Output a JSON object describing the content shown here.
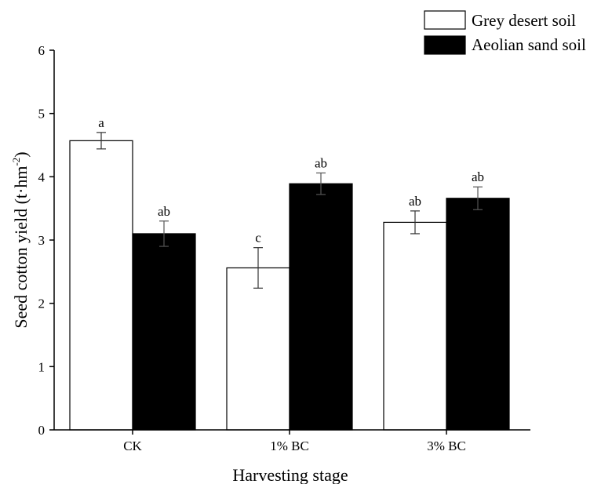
{
  "chart_data": {
    "type": "bar",
    "xlabel": "Harvesting stage",
    "ylabel_main": "Seed cotton yield (t·hm",
    "ylabel_sup": "-2",
    "ylabel_tail": ")",
    "ylim": [
      0,
      6
    ],
    "yticks": [
      "0",
      "1",
      "2",
      "3",
      "4",
      "5",
      "6"
    ],
    "categories": [
      "CK",
      "1% BC",
      "3% BC"
    ],
    "series": [
      {
        "name": "Grey desert soil",
        "color": "#ffffff",
        "values": [
          4.57,
          2.56,
          3.28
        ],
        "errors": [
          0.13,
          0.32,
          0.18
        ],
        "labels": [
          "a",
          "c",
          "ab"
        ]
      },
      {
        "name": "Aeolian sand soil",
        "color": "#000000",
        "values": [
          3.1,
          3.89,
          3.66
        ],
        "errors": [
          0.2,
          0.17,
          0.18
        ],
        "labels": [
          "ab",
          "ab",
          "ab"
        ]
      }
    ],
    "legend_position": "top-right",
    "grid": false
  }
}
